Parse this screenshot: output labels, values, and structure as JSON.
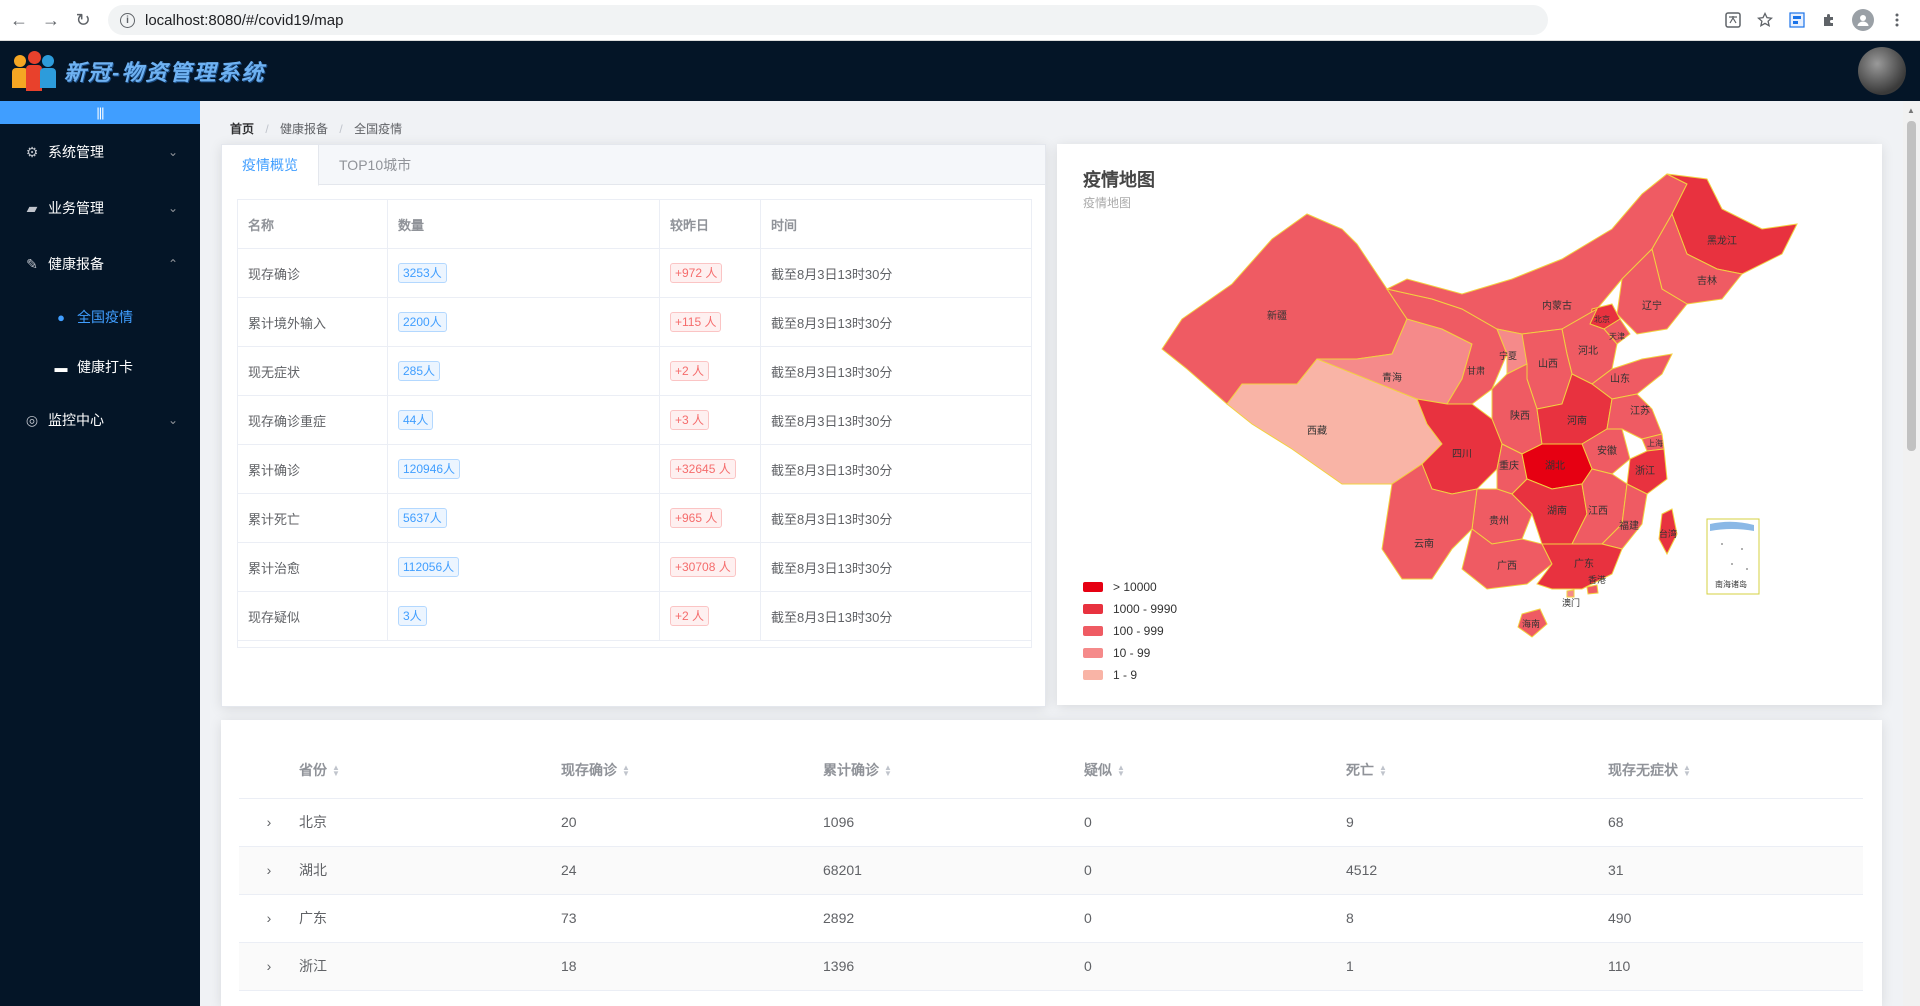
{
  "browser": {
    "url": "localhost:8080/#/covid19/map",
    "back_glyph": "←",
    "forward_glyph": "→",
    "reload_glyph": "↻",
    "info_glyph": "i"
  },
  "header": {
    "title": "新冠-物资管理系统"
  },
  "sidebar": {
    "collapse_glyph": "|||",
    "menus": [
      {
        "label": "系统管理",
        "icon": "gear-icon",
        "glyph": "⚙",
        "arrow": "⌄"
      },
      {
        "label": "业务管理",
        "icon": "briefcase-icon",
        "glyph": "▰",
        "arrow": "⌄"
      },
      {
        "label": "健康报备",
        "icon": "edit-icon",
        "glyph": "✎",
        "arrow": "⌃"
      },
      {
        "label": "监控中心",
        "icon": "camera-icon",
        "glyph": "◎",
        "arrow": "⌄"
      }
    ],
    "submenus": [
      {
        "label": "全国疫情",
        "icon": "location-icon",
        "glyph": "●"
      },
      {
        "label": "健康打卡",
        "icon": "toolbox-icon",
        "glyph": "▬"
      }
    ]
  },
  "breadcrumb": {
    "items": [
      "首页",
      "健康报备",
      "全国疫情"
    ],
    "sep": "/"
  },
  "overview": {
    "tabs": [
      "疫情概览",
      "TOP10城市"
    ],
    "headers": [
      "名称",
      "数量",
      "较昨日",
      "时间"
    ],
    "rows": [
      {
        "name": "现存确诊",
        "count": "3253人",
        "delta": "+972 人",
        "time": "截至8月3日13时30分"
      },
      {
        "name": "累计境外输入",
        "count": "2200人",
        "delta": "+115 人",
        "time": "截至8月3日13时30分"
      },
      {
        "name": "现无症状",
        "count": "285人",
        "delta": "+2 人",
        "time": "截至8月3日13时30分"
      },
      {
        "name": "现存确诊重症",
        "count": "44人",
        "delta": "+3 人",
        "time": "截至8月3日13时30分"
      },
      {
        "name": "累计确诊",
        "count": "120946人",
        "delta": "+32645 人",
        "time": "截至8月3日13时30分"
      },
      {
        "name": "累计死亡",
        "count": "5637人",
        "delta": "+965 人",
        "time": "截至8月3日13时30分"
      },
      {
        "name": "累计治愈",
        "count": "112056人",
        "delta": "+30708 人",
        "time": "截至8月3日13时30分"
      },
      {
        "name": "现存疑似",
        "count": "3人",
        "delta": "+2 人",
        "time": "截至8月3日13时30分"
      }
    ]
  },
  "map": {
    "title": "疫情地图",
    "subtitle": "疫情地图",
    "legend": [
      {
        "label": "> 10000",
        "color": "#e60012"
      },
      {
        "label": "1000 - 9990",
        "color": "#e8323f"
      },
      {
        "label": "100 - 999",
        "color": "#ef5b63"
      },
      {
        "label": "10 - 99",
        "color": "#f58a8a"
      },
      {
        "label": "1 - 9",
        "color": "#f9b4a6"
      }
    ],
    "regions": [
      {
        "name": "黑龙江",
        "color": "#e8323f"
      },
      {
        "name": "吉林",
        "color": "#ef5b63"
      },
      {
        "name": "辽宁",
        "color": "#ef5b63"
      },
      {
        "name": "内蒙古",
        "color": "#ef5b63"
      },
      {
        "name": "北京",
        "color": "#e8323f"
      },
      {
        "name": "天津",
        "color": "#ef5b63"
      },
      {
        "name": "河北",
        "color": "#ef5b63"
      },
      {
        "name": "山西",
        "color": "#ef5b63"
      },
      {
        "name": "山东",
        "color": "#ef5b63"
      },
      {
        "name": "新疆",
        "color": "#ef5b63"
      },
      {
        "name": "宁夏",
        "color": "#f58a8a"
      },
      {
        "name": "甘肃",
        "color": "#ef5b63"
      },
      {
        "name": "青海",
        "color": "#f58a8a"
      },
      {
        "name": "陕西",
        "color": "#ef5b63"
      },
      {
        "name": "河南",
        "color": "#e8323f"
      },
      {
        "name": "江苏",
        "color": "#ef5b63"
      },
      {
        "name": "安徽",
        "color": "#ef5b63"
      },
      {
        "name": "上海",
        "color": "#ef5b63"
      },
      {
        "name": "西藏",
        "color": "#f9b4a6"
      },
      {
        "name": "四川",
        "color": "#e8323f"
      },
      {
        "name": "重庆",
        "color": "#ef5b63"
      },
      {
        "name": "湖北",
        "color": "#e60012"
      },
      {
        "name": "浙江",
        "color": "#e8323f"
      },
      {
        "name": "湖南",
        "color": "#e8323f"
      },
      {
        "name": "江西",
        "color": "#ef5b63"
      },
      {
        "name": "福建",
        "color": "#ef5b63"
      },
      {
        "name": "贵州",
        "color": "#ef5b63"
      },
      {
        "name": "云南",
        "color": "#ef5b63"
      },
      {
        "name": "广西",
        "color": "#ef5b63"
      },
      {
        "name": "广东",
        "color": "#e8323f"
      },
      {
        "name": "台湾",
        "color": "#e8323f"
      },
      {
        "name": "澳门",
        "color": "#f58a8a"
      },
      {
        "name": "香港",
        "color": "#ef5b63"
      },
      {
        "name": "海南",
        "color": "#ef5b63"
      },
      {
        "name": "南海诸岛",
        "color": "#ffffff"
      }
    ]
  },
  "province_table": {
    "headers": [
      "省份",
      "现存确诊",
      "累计确诊",
      "疑似",
      "死亡",
      "现存无症状"
    ],
    "expand_glyph": "›",
    "rows": [
      [
        "北京",
        "20",
        "1096",
        "0",
        "9",
        "68"
      ],
      [
        "湖北",
        "24",
        "68201",
        "0",
        "4512",
        "31"
      ],
      [
        "广东",
        "73",
        "2892",
        "0",
        "8",
        "490"
      ],
      [
        "浙江",
        "18",
        "1396",
        "0",
        "1",
        "110"
      ]
    ]
  },
  "colors": {
    "primary": "#409eff",
    "sidebar_bg": "#041527",
    "danger": "#f56c6c"
  }
}
